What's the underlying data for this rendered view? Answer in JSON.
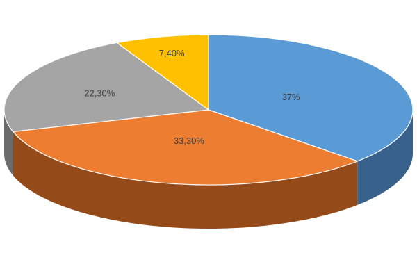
{
  "chart_data": {
    "type": "pie",
    "style": "3d",
    "title": "",
    "legend": "none",
    "slices": [
      {
        "label": "37%",
        "value": 37.0,
        "color": "#5B9BD5",
        "side_color": "#38628C"
      },
      {
        "label": "33,30%",
        "value": 33.3,
        "color": "#ED7D31",
        "side_color": "#954A1A"
      },
      {
        "label": "22,30%",
        "value": 22.3,
        "color": "#A5A5A5",
        "side_color": "#6B6B6B"
      },
      {
        "label": "7,40%",
        "value": 7.4,
        "color": "#FFC000",
        "side_color": "#A67C00"
      }
    ]
  }
}
